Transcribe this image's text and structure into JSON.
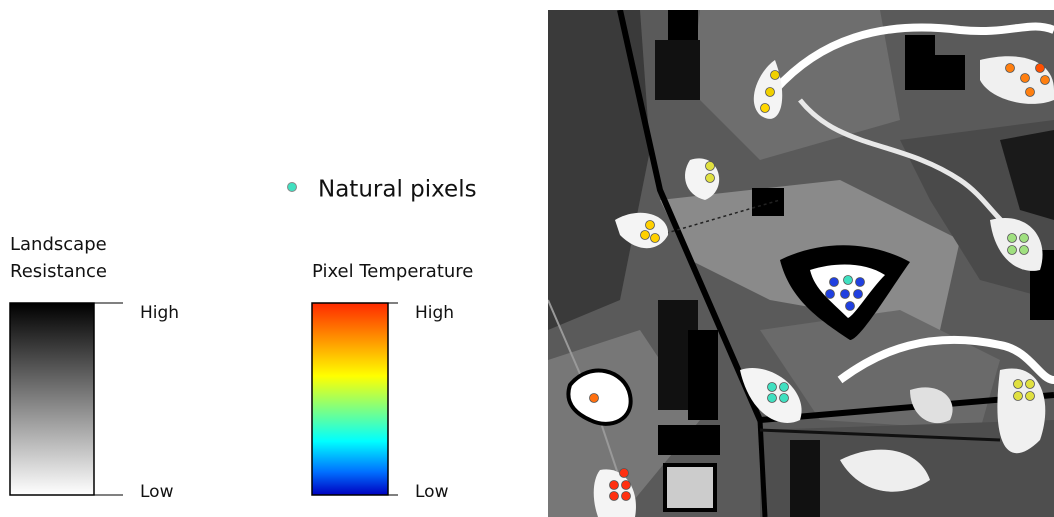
{
  "legend": {
    "natural_pixels": "Natural pixels",
    "resistance": {
      "title_lines": [
        "Landscape",
        "Resistance"
      ],
      "high": "High",
      "low": "Low"
    },
    "temperature": {
      "title": "Pixel Temperature",
      "high": "High",
      "low": "Low"
    }
  }
}
